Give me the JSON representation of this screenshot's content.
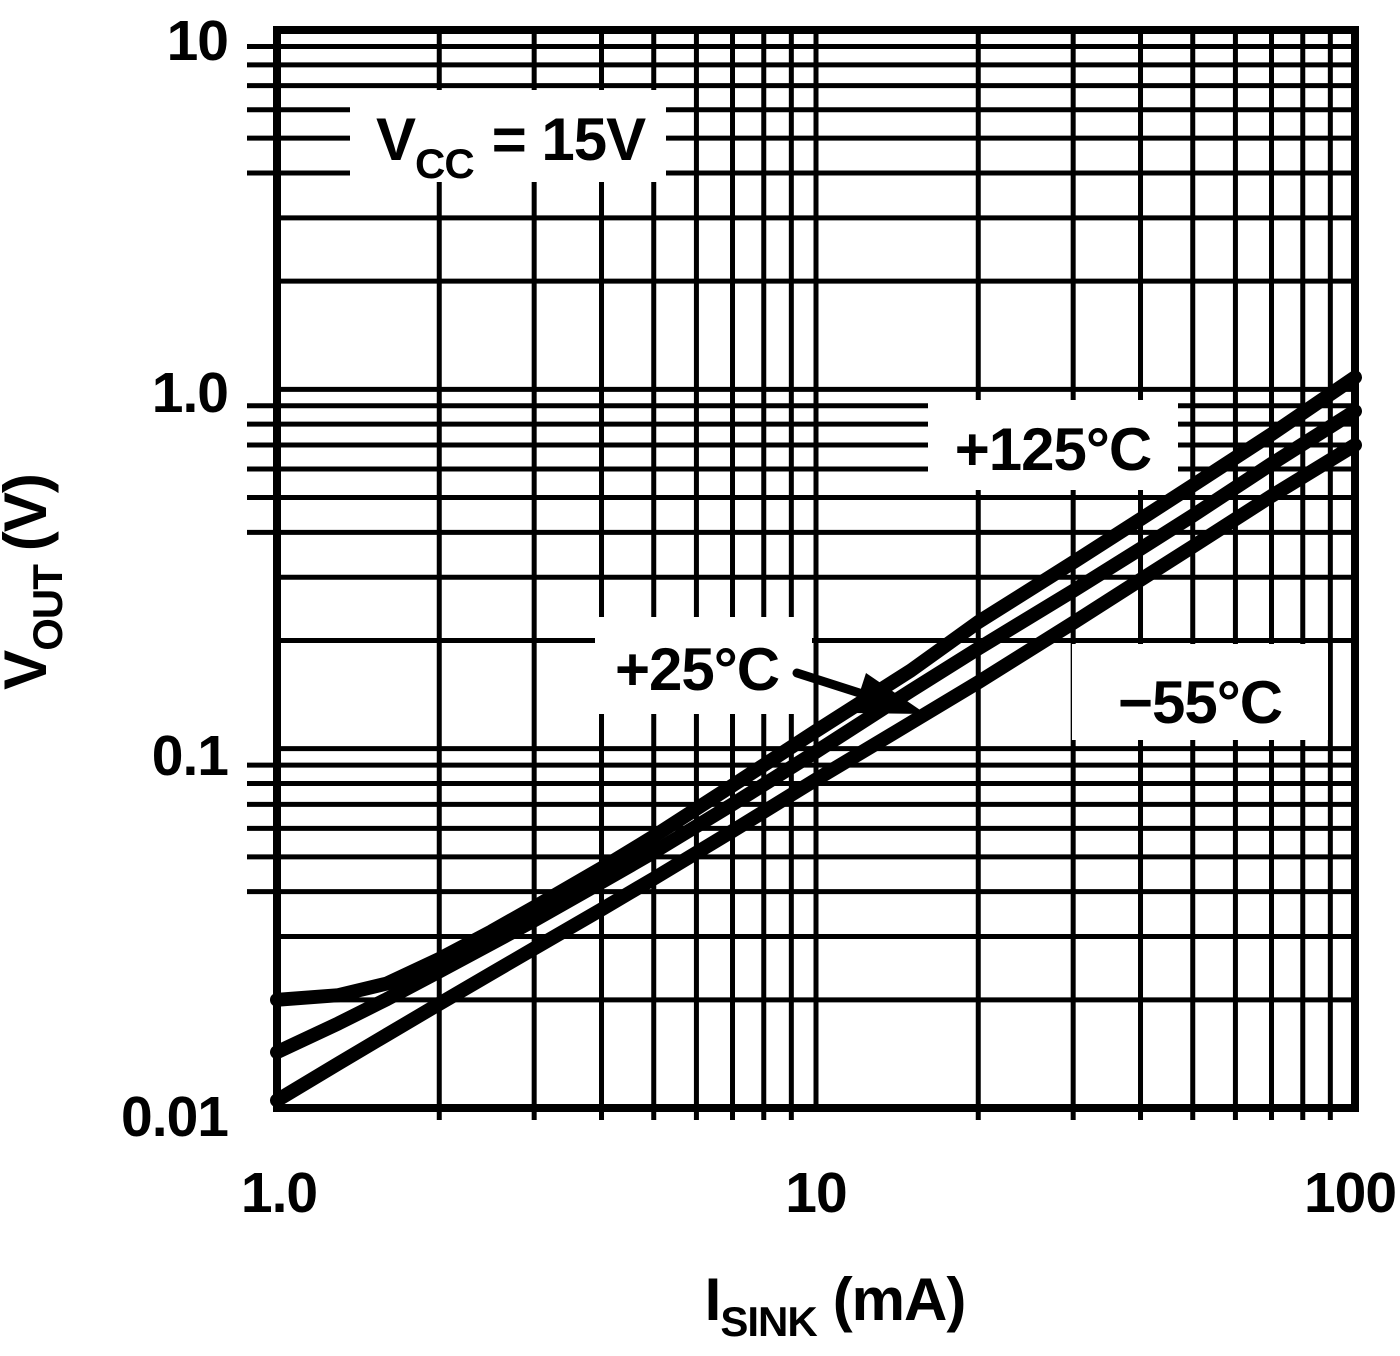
{
  "figure": {
    "ink_color": "#000000",
    "paper_color": "#ffffff",
    "description": "Output saturation voltage vs sink current, log-log datasheet figure"
  },
  "chart_data": {
    "type": "line",
    "x_scale": "log",
    "y_scale": "log",
    "xlim": [
      1,
      100
    ],
    "ylim": [
      0.01,
      10
    ],
    "grid": "full log minor grid, both axes, solid black lines",
    "legend_position": "inline curve labels with white boxes",
    "xlabel": {
      "pre": "I",
      "sub": "SINK",
      "post": "(mA)"
    },
    "ylabel": {
      "pre": "V",
      "sub": "OUT",
      "post": "(V)"
    },
    "x_ticks": [
      {
        "value": 1,
        "label": "1.0"
      },
      {
        "value": 10,
        "label": "10"
      },
      {
        "value": 100,
        "label": "100"
      }
    ],
    "y_ticks": [
      {
        "value": 0.01,
        "label": "0.01"
      },
      {
        "value": 0.1,
        "label": "0.1"
      },
      {
        "value": 1,
        "label": "1.0"
      },
      {
        "value": 10,
        "label": "10"
      }
    ],
    "annotation": {
      "pre": "V",
      "sub": "CC",
      "post": "= 15V"
    },
    "series": [
      {
        "name": "plus125C",
        "label": "+125°C",
        "temperature_c": 125,
        "points": [
          [
            1,
            0.02
          ],
          [
            1.3,
            0.0206
          ],
          [
            1.6,
            0.0222
          ],
          [
            2,
            0.026
          ],
          [
            2.5,
            0.031
          ],
          [
            3,
            0.0362
          ],
          [
            4,
            0.0465
          ],
          [
            5,
            0.057
          ],
          [
            7,
            0.079
          ],
          [
            10,
            0.112
          ],
          [
            15,
            0.165
          ],
          [
            20,
            0.225
          ],
          [
            30,
            0.33
          ],
          [
            40,
            0.435
          ],
          [
            50,
            0.54
          ],
          [
            70,
            0.75
          ],
          [
            100,
            1.08
          ]
        ]
      },
      {
        "name": "plus25C",
        "label": "+25°C",
        "temperature_c": 25,
        "points": [
          [
            1,
            0.0143
          ],
          [
            1.3,
            0.0172
          ],
          [
            1.6,
            0.0201
          ],
          [
            2,
            0.024
          ],
          [
            2.5,
            0.0287
          ],
          [
            3,
            0.0333
          ],
          [
            4,
            0.0425
          ],
          [
            5,
            0.0515
          ],
          [
            7,
            0.07
          ],
          [
            10,
            0.098
          ],
          [
            15,
            0.145
          ],
          [
            20,
            0.19
          ],
          [
            30,
            0.275
          ],
          [
            40,
            0.36
          ],
          [
            50,
            0.445
          ],
          [
            70,
            0.62
          ],
          [
            100,
            0.87
          ]
        ]
      },
      {
        "name": "minus55C",
        "label": "−55°C",
        "temperature_c": -55,
        "points": [
          [
            1,
            0.0105
          ],
          [
            1.3,
            0.0133
          ],
          [
            1.6,
            0.016
          ],
          [
            2,
            0.0195
          ],
          [
            2.5,
            0.0237
          ],
          [
            3,
            0.0278
          ],
          [
            4,
            0.0357
          ],
          [
            5,
            0.0435
          ],
          [
            7,
            0.059
          ],
          [
            10,
            0.082
          ],
          [
            15,
            0.118
          ],
          [
            20,
            0.153
          ],
          [
            30,
            0.224
          ],
          [
            40,
            0.295
          ],
          [
            50,
            0.365
          ],
          [
            70,
            0.505
          ],
          [
            100,
            0.7
          ]
        ]
      }
    ]
  }
}
